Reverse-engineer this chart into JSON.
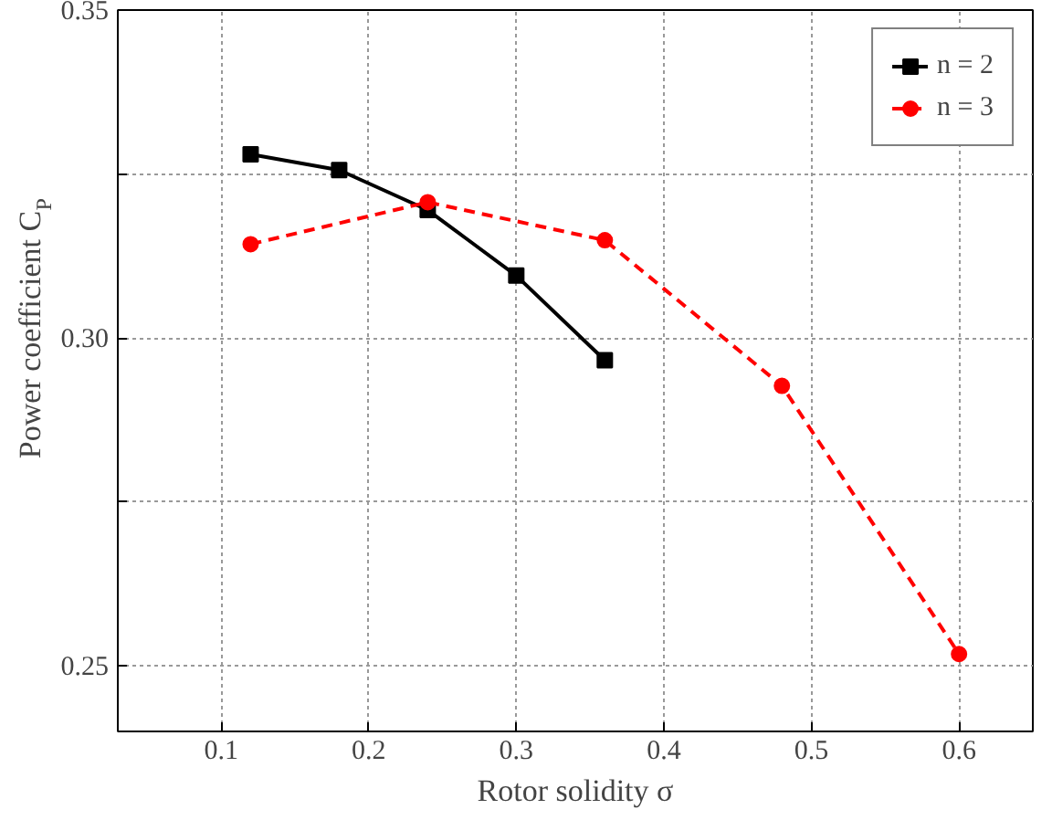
{
  "chart_data": {
    "type": "line",
    "xlabel": "Rotor solidity σ",
    "ylabel": "Power coefficient C$_{P}$",
    "xlim": [
      0.03,
      0.65
    ],
    "xticks": [
      0.1,
      0.2,
      0.3,
      0.4,
      0.5,
      0.6
    ],
    "ylim": [
      0.24,
      0.35
    ],
    "yticks": [
      {
        "value": 0.25,
        "label": "0.25"
      },
      {
        "value": 0.275,
        "label": null
      },
      {
        "value": 0.3,
        "label": "0.30"
      },
      {
        "value": 0.325,
        "label": null
      },
      {
        "value": 0.35,
        "label": "0.35"
      }
    ],
    "grid": true,
    "legend": "top right",
    "series": [
      {
        "name": "n = 2",
        "color": "#000000",
        "marker": "square",
        "line_style": "solid",
        "x": [
          0.12,
          0.18,
          0.24,
          0.3,
          0.36
        ],
        "values": [
          0.328,
          0.3256,
          0.3195,
          0.3095,
          0.2966
        ]
      },
      {
        "name": "n = 3",
        "color": "#ff0000",
        "marker": "circle",
        "line_style": "dashed",
        "x": [
          0.12,
          0.24,
          0.36,
          0.48,
          0.6
        ],
        "values": [
          0.3143,
          0.3207,
          0.3149,
          0.2927,
          0.2518
        ]
      }
    ]
  }
}
